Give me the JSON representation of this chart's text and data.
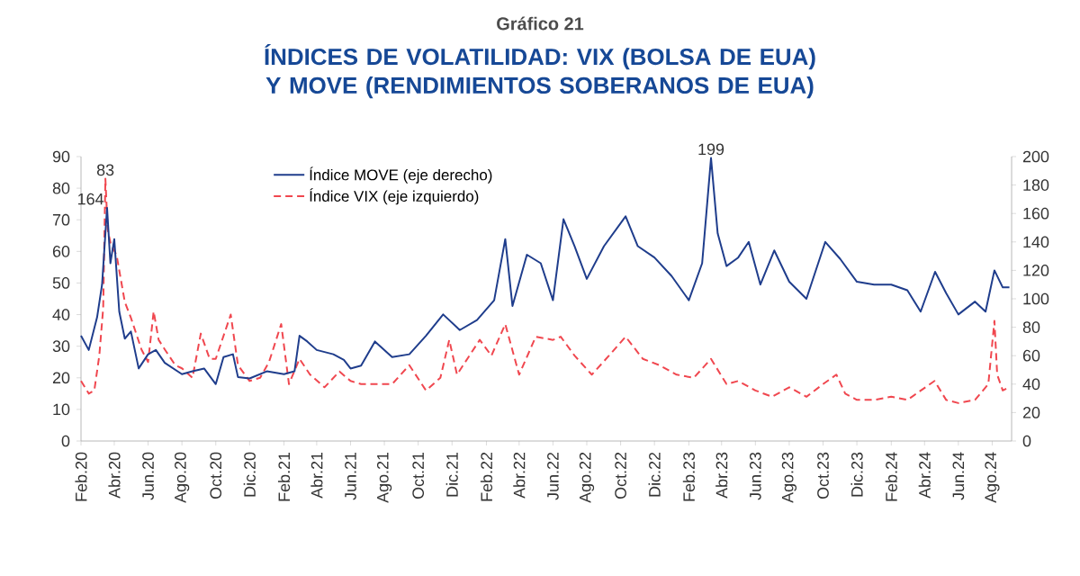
{
  "chart_data": {
    "type": "line",
    "subtitle": "Gráfico 21",
    "title": "ÍNDICES DE VOLATILIDAD: VIX (BOLSA DE EUA) Y MOVE (RENDIMIENTOS SOBERANOS DE EUA)",
    "xlim": [
      "2020-02-01",
      "2024-09-05"
    ],
    "xticks": [
      {
        "value": "2020-02",
        "label": "Feb.20"
      },
      {
        "value": "2020-04",
        "label": "Abr.20"
      },
      {
        "value": "2020-06",
        "label": "Jun.20"
      },
      {
        "value": "2020-08",
        "label": "Ago.20"
      },
      {
        "value": "2020-10",
        "label": "Oct.20"
      },
      {
        "value": "2020-12",
        "label": "Dic.20"
      },
      {
        "value": "2021-02",
        "label": "Feb.21"
      },
      {
        "value": "2021-04",
        "label": "Abr.21"
      },
      {
        "value": "2021-06",
        "label": "Jun.21"
      },
      {
        "value": "2021-08",
        "label": "Ago.21"
      },
      {
        "value": "2021-10",
        "label": "Oct.21"
      },
      {
        "value": "2021-12",
        "label": "Dic.21"
      },
      {
        "value": "2022-02",
        "label": "Feb.22"
      },
      {
        "value": "2022-04",
        "label": "Abr.22"
      },
      {
        "value": "2022-06",
        "label": "Jun.22"
      },
      {
        "value": "2022-08",
        "label": "Ago.22"
      },
      {
        "value": "2022-10",
        "label": "Oct.22"
      },
      {
        "value": "2022-12",
        "label": "Dic.22"
      },
      {
        "value": "2023-02",
        "label": "Feb.23"
      },
      {
        "value": "2023-04",
        "label": "Abr.23"
      },
      {
        "value": "2023-06",
        "label": "Jun.23"
      },
      {
        "value": "2023-08",
        "label": "Ago.23"
      },
      {
        "value": "2023-10",
        "label": "Oct.23"
      },
      {
        "value": "2023-12",
        "label": "Dic.23"
      },
      {
        "value": "2024-02",
        "label": "Feb.24"
      },
      {
        "value": "2024-04",
        "label": "Abr.24"
      },
      {
        "value": "2024-06",
        "label": "Jun.24"
      },
      {
        "value": "2024-08",
        "label": "Ago.24"
      }
    ],
    "ylim": [
      0,
      90
    ],
    "yticks": [
      0,
      10,
      20,
      30,
      40,
      50,
      60,
      70,
      80,
      90
    ],
    "y2lim": [
      0,
      200
    ],
    "y2ticks": [
      0,
      20,
      40,
      60,
      80,
      100,
      120,
      140,
      160,
      180,
      200
    ],
    "legend": "top left",
    "series": [
      {
        "name": "Índice MOVE (eje derecho)",
        "color": "#1f3d8c",
        "axis": "y2",
        "line_style": "solid",
        "x": [
          "2020-02-01",
          "2020-02-15",
          "2020-03-01",
          "2020-03-10",
          "2020-03-19",
          "2020-03-25",
          "2020-04-01",
          "2020-04-10",
          "2020-04-20",
          "2020-05-01",
          "2020-05-15",
          "2020-06-01",
          "2020-06-15",
          "2020-07-01",
          "2020-08-01",
          "2020-08-20",
          "2020-09-10",
          "2020-10-01",
          "2020-10-15",
          "2020-11-01",
          "2020-11-10",
          "2020-12-01",
          "2021-01-01",
          "2021-02-01",
          "2021-02-20",
          "2021-03-01",
          "2021-03-15",
          "2021-04-01",
          "2021-05-01",
          "2021-05-20",
          "2021-06-01",
          "2021-06-20",
          "2021-07-15",
          "2021-08-15",
          "2021-09-15",
          "2021-10-15",
          "2021-11-15",
          "2021-12-15",
          "2022-01-15",
          "2022-02-15",
          "2022-03-07",
          "2022-03-20",
          "2022-04-15",
          "2022-05-10",
          "2022-06-01",
          "2022-06-20",
          "2022-07-10",
          "2022-08-01",
          "2022-09-01",
          "2022-10-10",
          "2022-11-01",
          "2022-12-01",
          "2023-01-01",
          "2023-02-01",
          "2023-02-25",
          "2023-03-13",
          "2023-03-25",
          "2023-04-10",
          "2023-05-01",
          "2023-05-20",
          "2023-06-10",
          "2023-07-05",
          "2023-08-01",
          "2023-09-01",
          "2023-10-05",
          "2023-11-01",
          "2023-12-01",
          "2024-01-01",
          "2024-02-01",
          "2024-03-01",
          "2024-03-25",
          "2024-04-20",
          "2024-05-10",
          "2024-06-01",
          "2024-07-01",
          "2024-07-20",
          "2024-08-05",
          "2024-08-20",
          "2024-09-01"
        ],
        "values": [
          74,
          64,
          87,
          110,
          164,
          125,
          142,
          91,
          72,
          77,
          51,
          61,
          64,
          55,
          47,
          49,
          51,
          40,
          59,
          61,
          45,
          44,
          49,
          47,
          49,
          74,
          70,
          64,
          61,
          57,
          51,
          53,
          70,
          59,
          61,
          74,
          89,
          78,
          85,
          99,
          142,
          95,
          131,
          125,
          99,
          156,
          137,
          114,
          137,
          158,
          137,
          129,
          116,
          99,
          125,
          199,
          146,
          123,
          129,
          140,
          110,
          134,
          112,
          100,
          140,
          128,
          112,
          110,
          110,
          106,
          91,
          119,
          104,
          89,
          98,
          91,
          120,
          108,
          108
        ]
      },
      {
        "name": "Índice VIX (eje izquierdo)",
        "color": "#f0474f",
        "line_style": "dashed",
        "x": [
          "2020-02-01",
          "2020-02-15",
          "2020-02-25",
          "2020-03-05",
          "2020-03-12",
          "2020-03-16",
          "2020-03-20",
          "2020-03-26",
          "2020-04-05",
          "2020-04-20",
          "2020-05-01",
          "2020-05-20",
          "2020-06-01",
          "2020-06-11",
          "2020-06-20",
          "2020-07-01",
          "2020-07-20",
          "2020-08-01",
          "2020-08-20",
          "2020-09-04",
          "2020-09-20",
          "2020-10-01",
          "2020-10-28",
          "2020-11-10",
          "2020-12-01",
          "2020-12-20",
          "2021-01-05",
          "2021-01-27",
          "2021-02-10",
          "2021-03-01",
          "2021-03-20",
          "2021-04-15",
          "2021-05-12",
          "2021-06-01",
          "2021-06-20",
          "2021-07-15",
          "2021-08-15",
          "2021-09-15",
          "2021-10-15",
          "2021-11-10",
          "2021-11-26",
          "2021-12-10",
          "2022-01-20",
          "2022-02-10",
          "2022-03-07",
          "2022-04-01",
          "2022-05-01",
          "2022-06-01",
          "2022-06-15",
          "2022-07-10",
          "2022-08-10",
          "2022-09-10",
          "2022-10-10",
          "2022-11-10",
          "2022-12-10",
          "2023-01-10",
          "2023-02-10",
          "2023-03-13",
          "2023-04-10",
          "2023-05-01",
          "2023-06-01",
          "2023-07-01",
          "2023-08-01",
          "2023-09-01",
          "2023-10-01",
          "2023-10-25",
          "2023-11-10",
          "2023-12-01",
          "2024-01-01",
          "2024-02-01",
          "2024-03-01",
          "2024-04-19",
          "2024-05-10",
          "2024-06-01",
          "2024-07-01",
          "2024-07-25",
          "2024-08-05",
          "2024-08-10",
          "2024-08-20",
          "2024-09-01"
        ],
        "values": [
          19,
          15,
          16,
          27,
          42,
          83,
          67,
          62,
          59,
          44,
          39,
          29,
          25,
          41,
          32,
          29,
          24,
          23,
          20,
          34,
          26,
          26,
          40,
          24,
          19,
          20,
          25,
          37,
          18,
          26,
          21,
          17,
          22,
          19,
          18,
          18,
          18,
          24,
          16,
          20,
          32,
          21,
          32,
          27,
          37,
          21,
          33,
          32,
          33,
          27,
          21,
          27,
          33,
          26,
          24,
          21,
          20,
          26,
          18,
          19,
          16,
          14,
          17,
          14,
          18,
          21,
          15,
          13,
          13,
          14,
          13,
          19,
          13,
          12,
          13,
          18,
          38,
          21,
          16,
          17
        ]
      }
    ],
    "annotations": [
      {
        "text": "83",
        "x": "2020-03-16",
        "y": 83
      },
      {
        "text": "164",
        "x": "2020-03-19",
        "y": 73.8
      },
      {
        "text": "199",
        "x": "2023-03-13",
        "y": 89.55
      }
    ]
  }
}
